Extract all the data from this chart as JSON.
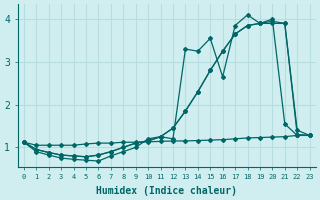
{
  "xlabel": "Humidex (Indice chaleur)",
  "ylabel": "",
  "bg_color": "#d0eef0",
  "line_color": "#006666",
  "grid_color": "#b8dde0",
  "xlim": [
    -0.5,
    23.5
  ],
  "ylim": [
    0.55,
    4.35
  ],
  "series1_x": [
    0,
    1,
    2,
    3,
    4,
    5,
    6,
    7,
    8,
    9,
    10,
    11,
    12,
    13,
    14,
    15,
    16,
    17,
    18,
    19,
    20,
    21,
    22,
    23
  ],
  "series1_y": [
    1.12,
    0.9,
    0.82,
    0.75,
    0.72,
    0.7,
    0.68,
    0.8,
    0.9,
    1.0,
    1.2,
    1.25,
    1.2,
    3.3,
    3.25,
    3.55,
    2.65,
    3.85,
    4.1,
    3.9,
    4.0,
    1.55,
    1.28,
    1.28
  ],
  "series2_x": [
    0,
    1,
    2,
    3,
    4,
    5,
    6,
    7,
    8,
    9,
    10,
    11,
    12,
    13,
    14,
    15,
    16,
    17,
    18,
    19,
    20,
    21,
    22,
    23
  ],
  "series2_y": [
    1.12,
    0.95,
    0.88,
    0.82,
    0.8,
    0.78,
    0.82,
    0.9,
    1.0,
    1.1,
    1.15,
    1.25,
    1.45,
    1.85,
    2.3,
    2.8,
    3.25,
    3.65,
    3.85,
    3.9,
    3.95,
    3.9,
    1.4,
    1.28
  ],
  "series3_x": [
    0,
    1,
    2,
    3,
    4,
    5,
    6,
    7,
    8,
    9,
    10,
    11,
    12,
    13,
    14,
    15,
    16,
    17,
    18,
    19,
    20,
    21,
    22,
    23
  ],
  "series3_y": [
    1.12,
    0.95,
    0.88,
    0.82,
    0.8,
    0.78,
    0.82,
    0.9,
    1.0,
    1.1,
    1.15,
    1.25,
    1.45,
    1.85,
    2.3,
    2.8,
    3.25,
    3.65,
    3.85,
    3.9,
    3.9,
    3.9,
    1.3,
    1.28
  ],
  "series4_x": [
    0,
    1,
    2,
    3,
    4,
    5,
    6,
    7,
    8,
    9,
    10,
    11,
    12,
    13,
    14,
    15,
    16,
    17,
    18,
    19,
    20,
    21,
    22,
    23
  ],
  "series4_y": [
    1.12,
    1.05,
    1.05,
    1.05,
    1.05,
    1.08,
    1.1,
    1.1,
    1.12,
    1.12,
    1.13,
    1.14,
    1.15,
    1.15,
    1.16,
    1.17,
    1.18,
    1.2,
    1.22,
    1.23,
    1.24,
    1.25,
    1.28,
    1.28
  ]
}
